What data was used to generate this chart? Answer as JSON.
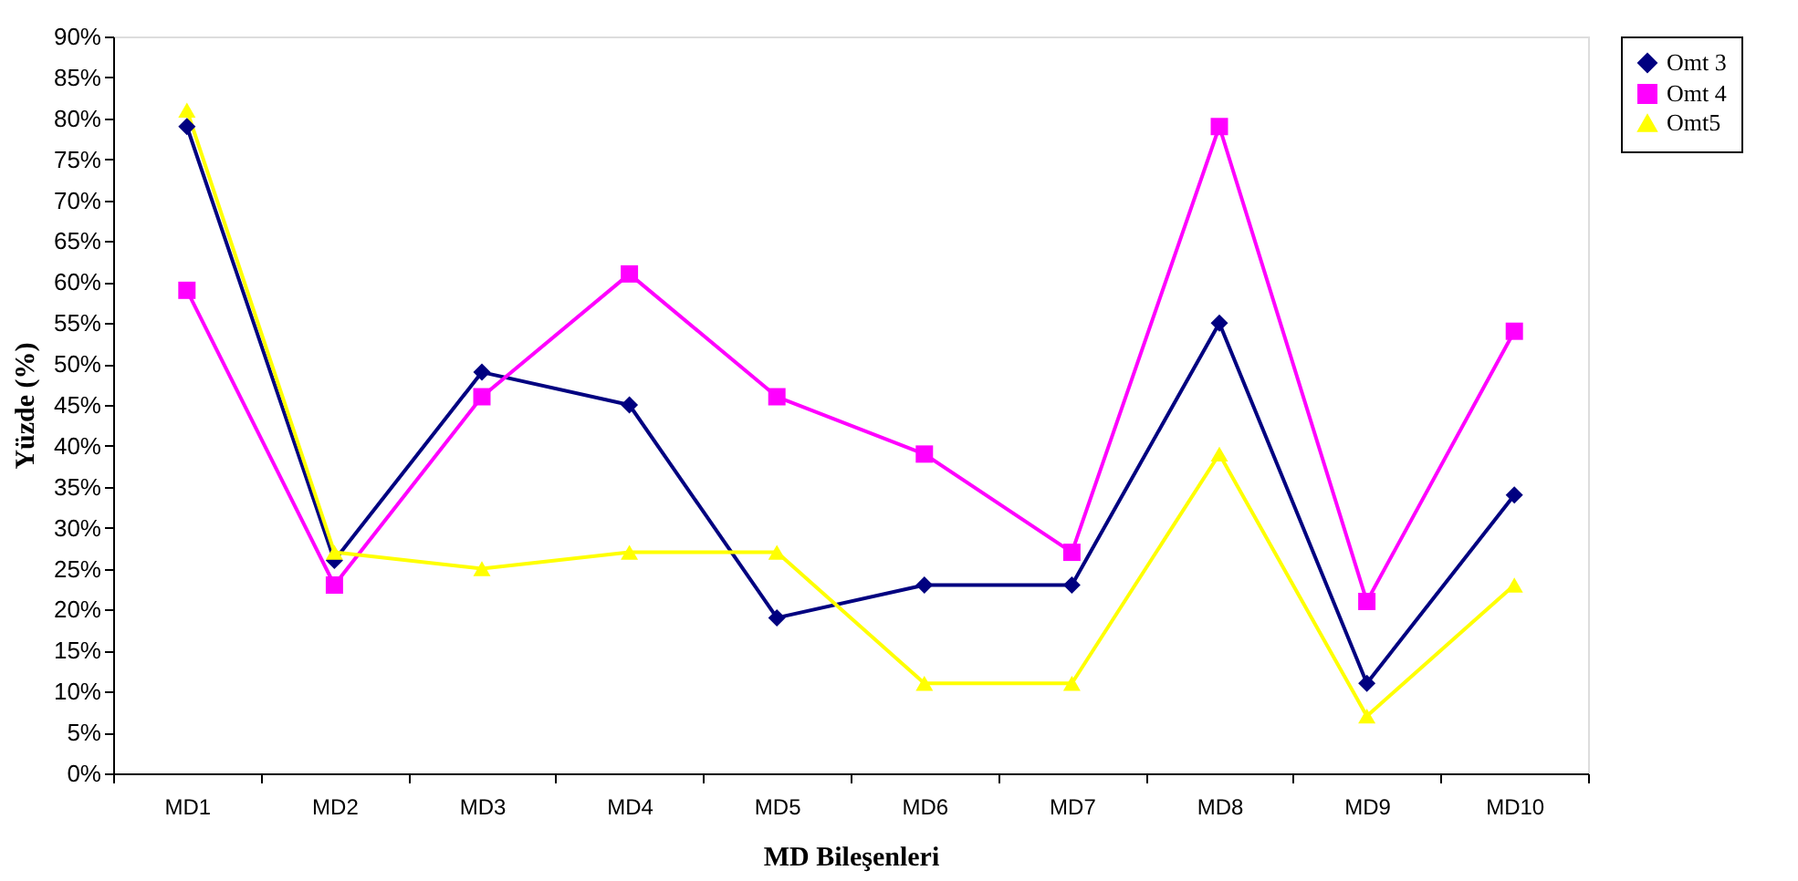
{
  "chart_data": {
    "type": "line",
    "xlabel": "MD Bileşenleri",
    "ylabel": "Yüzde (%)",
    "categories": [
      "MD1",
      "MD2",
      "MD3",
      "MD4",
      "MD5",
      "MD6",
      "MD7",
      "MD8",
      "MD9",
      "MD10"
    ],
    "series": [
      {
        "name": "Omt 3",
        "color": "#000080",
        "marker": "diamond",
        "values": [
          79,
          26,
          49,
          45,
          19,
          23,
          23,
          55,
          11,
          34
        ]
      },
      {
        "name": "Omt 4",
        "color": "#ff00ff",
        "marker": "square",
        "values": [
          59,
          23,
          46,
          61,
          46,
          39,
          27,
          79,
          21,
          54
        ]
      },
      {
        "name": "Omt5",
        "color": "#ffff00",
        "marker": "triangle",
        "values": [
          81,
          27,
          25,
          27,
          27,
          11,
          11,
          39,
          7,
          23
        ]
      }
    ],
    "ylim": [
      0,
      90
    ],
    "yticks": [
      {
        "value": 0,
        "label": "0%"
      },
      {
        "value": 5,
        "label": "5%"
      },
      {
        "value": 10,
        "label": "10%"
      },
      {
        "value": 15,
        "label": "15%"
      },
      {
        "value": 20,
        "label": "20%"
      },
      {
        "value": 25,
        "label": "25%"
      },
      {
        "value": 30,
        "label": "30%"
      },
      {
        "value": 35,
        "label": "35%"
      },
      {
        "value": 40,
        "label": "40%"
      },
      {
        "value": 45,
        "label": "45%"
      },
      {
        "value": 50,
        "label": "50%"
      },
      {
        "value": 55,
        "label": "55%"
      },
      {
        "value": 60,
        "label": "60%"
      },
      {
        "value": 65,
        "label": "65%"
      },
      {
        "value": 70,
        "label": "70%"
      },
      {
        "value": 75,
        "label": "75%"
      },
      {
        "value": 80,
        "label": "80%"
      },
      {
        "value": 85,
        "label": "85%"
      },
      {
        "value": 90,
        "label": "90%"
      }
    ],
    "grid": false,
    "legend": "right",
    "line_style": "solid"
  }
}
